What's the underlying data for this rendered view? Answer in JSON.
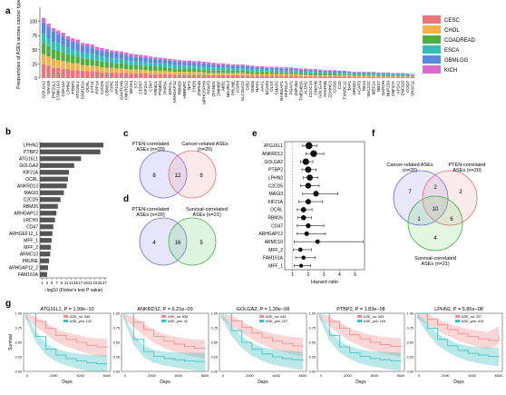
{
  "panel_labels": {
    "a": "a",
    "b": "b",
    "c": "c",
    "d": "d",
    "e": "e",
    "f": "f",
    "g": "g"
  },
  "chart_data": [
    {
      "panel": "a",
      "type": "bar",
      "ylabel": "Frequencies of ASEs across cancer types",
      "yticks": [
        0,
        25,
        50,
        75,
        100
      ],
      "ylim": [
        0,
        125
      ],
      "legend_position": "right",
      "legend": [
        {
          "name": "CESC",
          "color": "#e9767c"
        },
        {
          "name": "CHOL",
          "color": "#f1b24a"
        },
        {
          "name": "COADREAD",
          "color": "#4fae3f"
        },
        {
          "name": "ESCA",
          "color": "#36bdb7"
        },
        {
          "name": "GBMLGG",
          "color": "#5a8ae0"
        },
        {
          "name": "KICH",
          "color": "#d86bd0"
        }
      ],
      "categories": [
        "GOLGA2",
        "SPAG9",
        "PHF20L1",
        "CSNK1G3",
        "CDK11A",
        "LPHN2",
        "PTBP2",
        "ATG16L1",
        "FAM161A",
        "OCRL",
        "SYT11",
        "RPP14",
        "C2CD5",
        "CBWD1",
        "FXR1",
        "AP1G1",
        "GPATCH8",
        "ANKRD12",
        "MAGI3",
        "ST7",
        "CEP57",
        "KIF21A",
        "CD47",
        "ARMC1",
        "PSMD4",
        "PHF5A",
        "ERO1L",
        "ARHGAP12",
        "RBM26",
        "HNRNPC",
        "NIT2",
        "CHD9",
        "ZNF548",
        "MPHOSPH9",
        "RPAP3",
        "ZFAND1",
        "DNMBP",
        "MIB1",
        "NEURL4",
        "PRUNE",
        "ASPM",
        "SLC25A22",
        "CIB2",
        "SMG6",
        "NAE1",
        "AAK1",
        "BCAR3",
        "DLST",
        "SMAP2",
        "RABGAP1",
        "PAPOLA",
        "PGAP1",
        "ZNF263",
        "TMEM55A",
        "ALDH2",
        "CCDC14",
        "DNAH6",
        "GOLGA4",
        "FAM76B",
        "ZDHHC3",
        "COG6",
        "C1D",
        "TXNDC11",
        "TAP1",
        "NRDE2",
        "ACAP3",
        "TBX3",
        "SEC22C",
        "MEF2A",
        "BBS7",
        "GAPDH",
        "NUP153",
        "ZNF37A",
        "AP2A2",
        "ZNF318",
        "COQ7",
        "SRSF11"
      ],
      "segments": [
        [
          24,
          18,
          20,
          16,
          20,
          8
        ],
        [
          22,
          16,
          18,
          14,
          20,
          6
        ],
        [
          18,
          16,
          16,
          14,
          18,
          6
        ],
        [
          18,
          14,
          16,
          14,
          16,
          6
        ],
        [
          16,
          14,
          16,
          12,
          16,
          6
        ],
        [
          16,
          12,
          14,
          12,
          14,
          6
        ],
        [
          14,
          12,
          14,
          10,
          14,
          6
        ],
        [
          14,
          12,
          12,
          10,
          14,
          6
        ],
        [
          13,
          10,
          12,
          10,
          12,
          5
        ],
        [
          12,
          10,
          12,
          10,
          12,
          5
        ],
        [
          12,
          10,
          10,
          10,
          12,
          5
        ],
        [
          12,
          9,
          10,
          9,
          10,
          5
        ],
        [
          10,
          9,
          10,
          9,
          10,
          5
        ],
        [
          10,
          8,
          10,
          9,
          10,
          4
        ],
        [
          10,
          8,
          9,
          8,
          10,
          4
        ],
        [
          9,
          8,
          9,
          8,
          10,
          4
        ],
        [
          9,
          8,
          9,
          8,
          9,
          4
        ],
        [
          9,
          7,
          8,
          8,
          9,
          4
        ],
        [
          8,
          7,
          8,
          7,
          9,
          4
        ],
        [
          8,
          7,
          8,
          7,
          8,
          4
        ],
        [
          8,
          7,
          7,
          7,
          8,
          4
        ],
        [
          8,
          6,
          7,
          7,
          8,
          4
        ],
        [
          7,
          6,
          7,
          7,
          8,
          3
        ],
        [
          7,
          6,
          7,
          6,
          8,
          3
        ],
        [
          7,
          6,
          7,
          6,
          7,
          3
        ],
        [
          7,
          6,
          6,
          6,
          7,
          3
        ],
        [
          7,
          5,
          6,
          6,
          7,
          3
        ],
        [
          6,
          5,
          6,
          6,
          7,
          3
        ],
        [
          6,
          5,
          6,
          6,
          6,
          3
        ],
        [
          6,
          5,
          6,
          5,
          6,
          3
        ],
        [
          6,
          5,
          6,
          5,
          6,
          3
        ],
        [
          6,
          5,
          5,
          5,
          6,
          3
        ],
        [
          6,
          5,
          5,
          5,
          6,
          3
        ],
        [
          6,
          4,
          5,
          5,
          6,
          3
        ],
        [
          5,
          4,
          5,
          5,
          6,
          3
        ],
        [
          5,
          4,
          5,
          5,
          5,
          3
        ],
        [
          5,
          4,
          5,
          4,
          5,
          3
        ],
        [
          5,
          4,
          5,
          4,
          5,
          3
        ],
        [
          5,
          4,
          5,
          4,
          5,
          2
        ],
        [
          5,
          4,
          4,
          4,
          5,
          2
        ],
        [
          5,
          4,
          4,
          4,
          5,
          2
        ],
        [
          5,
          4,
          4,
          4,
          5,
          2
        ],
        [
          5,
          3,
          4,
          4,
          5,
          2
        ],
        [
          4,
          3,
          4,
          4,
          5,
          2
        ],
        [
          4,
          3,
          4,
          4,
          4,
          2
        ],
        [
          4,
          3,
          4,
          4,
          4,
          2
        ],
        [
          4,
          3,
          4,
          3,
          4,
          2
        ],
        [
          4,
          3,
          4,
          3,
          4,
          2
        ],
        [
          4,
          3,
          4,
          3,
          4,
          2
        ],
        [
          4,
          3,
          3,
          3,
          4,
          2
        ],
        [
          4,
          3,
          3,
          3,
          4,
          2
        ],
        [
          4,
          3,
          3,
          3,
          4,
          2
        ],
        [
          4,
          3,
          3,
          3,
          3,
          2
        ],
        [
          3,
          3,
          3,
          3,
          3,
          2
        ],
        [
          3,
          3,
          3,
          3,
          3,
          2
        ],
        [
          3,
          2,
          3,
          3,
          3,
          2
        ],
        [
          3,
          2,
          3,
          3,
          3,
          2
        ],
        [
          3,
          2,
          3,
          3,
          3,
          1
        ],
        [
          3,
          2,
          3,
          2,
          3,
          1
        ],
        [
          3,
          2,
          3,
          2,
          3,
          1
        ],
        [
          3,
          2,
          3,
          2,
          3,
          1
        ],
        [
          3,
          2,
          2,
          2,
          3,
          1
        ],
        [
          3,
          2,
          2,
          2,
          3,
          1
        ],
        [
          3,
          2,
          2,
          2,
          2,
          1
        ],
        [
          2,
          2,
          2,
          2,
          2,
          1
        ],
        [
          2,
          2,
          2,
          2,
          2,
          1
        ],
        [
          2,
          2,
          2,
          2,
          2,
          1
        ],
        [
          2,
          2,
          2,
          2,
          2,
          1
        ],
        [
          2,
          2,
          2,
          2,
          2,
          1
        ],
        [
          2,
          1,
          2,
          2,
          2,
          1
        ],
        [
          2,
          1,
          2,
          2,
          2,
          1
        ],
        [
          2,
          1,
          2,
          2,
          2,
          1
        ],
        [
          2,
          1,
          2,
          1,
          2,
          1
        ],
        [
          2,
          1,
          2,
          1,
          2,
          1
        ],
        [
          2,
          1,
          2,
          1,
          2,
          1
        ],
        [
          2,
          1,
          1,
          1,
          2,
          1
        ],
        [
          2,
          1,
          1,
          1,
          1,
          1
        ]
      ]
    },
    {
      "panel": "b",
      "type": "bar",
      "orientation": "horizontal",
      "xlabel": "−log10 (Fisher's test P value)",
      "xticks": [
        "1",
        "3",
        "5",
        "7",
        "9",
        "11",
        "13",
        "15",
        "17",
        "19",
        "21",
        "23",
        "25",
        "27"
      ],
      "xlim": [
        0,
        28
      ],
      "categories": [
        "LPHN2",
        "PTBP2",
        "ATG16L1",
        "GOLGA2",
        "KIF21A",
        "OCRL",
        "ANKRD12",
        "MAGI3",
        "C2CD5",
        "RBM26",
        "ARHGAP12",
        "LRCH3",
        "CD47",
        "ARHGEF12_1",
        "MFF_1",
        "MFF_2",
        "ARMC10",
        "PRUNE",
        "ARHGAP12_2",
        "FAM161A"
      ],
      "values": [
        26.5,
        25.2,
        17.2,
        14.3,
        12.1,
        11.7,
        11.2,
        10.0,
        8.6,
        7.5,
        6.9,
        6.3,
        5.6,
        5.2,
        4.9,
        4.6,
        4.3,
        3.8,
        3.4,
        3.0
      ]
    },
    {
      "panel": "e",
      "type": "scatter",
      "xlabel": "Hazard ratio",
      "xticks": [
        1,
        2,
        3,
        4,
        5
      ],
      "xlim": [
        0.5,
        5.6
      ],
      "categories": [
        "ATG16L1",
        "ANKRD12",
        "GOLGA2",
        "PTBP2",
        "LPHN2",
        "C2CD5",
        "MAGI3",
        "KIF21A",
        "OCRL",
        "RBM26",
        "CD47",
        "ARHGAP12",
        "ARMC10",
        "MFF_2",
        "FAM161A",
        "MFF_1"
      ],
      "hr": [
        2.05,
        2.35,
        1.85,
        2.0,
        2.1,
        2.0,
        2.5,
        2.0,
        1.7,
        1.7,
        2.0,
        1.9,
        2.6,
        1.5,
        1.7,
        1.55
      ],
      "lower": [
        1.65,
        1.85,
        1.5,
        1.6,
        1.7,
        1.5,
        1.65,
        1.4,
        1.3,
        1.35,
        1.3,
        1.3,
        1.1,
        1.05,
        1.2,
        1.1
      ],
      "upper": [
        2.55,
        3.0,
        2.3,
        2.5,
        2.6,
        2.7,
        3.9,
        2.9,
        2.25,
        2.2,
        3.0,
        3.1,
        5.5,
        2.2,
        2.45,
        2.15
      ]
    }
  ],
  "venn_c": {
    "left_label_1": "PTEN-correlated",
    "left_label_2": "ASEs (n=20)",
    "right_label_1": "Cancer-related ASEs",
    "right_label_2": "(n=20)",
    "left_only": "8",
    "both": "12",
    "right_only": "8"
  },
  "venn_d": {
    "left_label_1": "PTEN-correlated",
    "left_label_2": "ASEs (n=20)",
    "right_label_1": "Survival-correlated",
    "right_label_2": "ASEs (n=21)",
    "left_only": "4",
    "both": "16",
    "right_only": "5"
  },
  "venn_f": {
    "a_label_1": "Cancer-related ASEs",
    "a_label_2": "(n=20)",
    "b_label_1": "PTEN-correlated",
    "b_label_2": "ASEs (n=20)",
    "c_label_1": "Survival-correlated",
    "c_label_2": "ASEs (n=21)",
    "a_only": "7",
    "ab": "2",
    "b_only": "2",
    "abc": "10",
    "ac": "1",
    "bc": "6",
    "c_only": "4"
  },
  "km_plots": [
    {
      "title": "ATG16L1, P = 1.99e−10",
      "n_no": "ASE_no: 545",
      "n_yes": "ASE_yes: 132"
    },
    {
      "title": "ANKRD12, P = 6.21e−09",
      "n_no": "ASE_no: 635",
      "n_yes": "ASE_yes: 42"
    },
    {
      "title": "GOLGA2, P = 1.30e−08",
      "n_no": "ASE_no: 445",
      "n_yes": "ASE_yes: 227"
    },
    {
      "title": "PTBP2, P = 1.83e−08",
      "n_no": "ASE_no: 593",
      "n_yes": "ASE_yes: 109"
    },
    {
      "title": "LPHN2, P = 5.85e−08",
      "n_no": "ASE_no: 257",
      "n_yes": "ASE_yes: 415"
    }
  ],
  "km_axis": {
    "ylabel": "Survival",
    "xlabel": "Days",
    "yticks": [
      "0.00",
      "0.25",
      "0.50",
      "0.75",
      "1.00"
    ],
    "xticks": [
      "0",
      "2000",
      "4000",
      "6000"
    ]
  },
  "colors": {
    "no": "#f08a8a",
    "yes": "#3cc0c0"
  }
}
